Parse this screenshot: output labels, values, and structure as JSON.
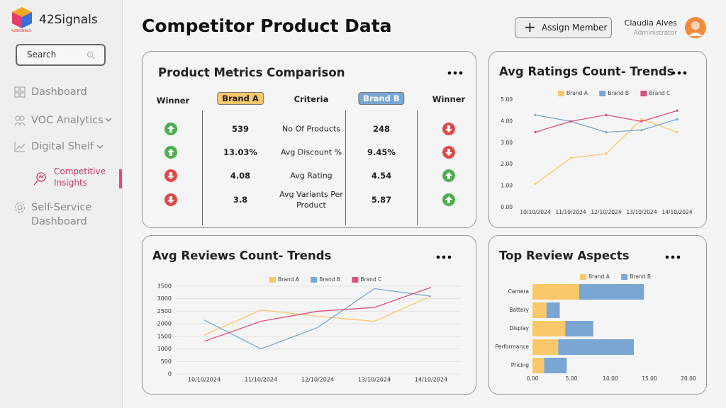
{
  "sidebar": {
    "logo": "42Signals",
    "logo_sub": "42SIGNALS",
    "search": "Search",
    "nav": [
      "Dashboard",
      "VOC Analytics",
      "Digital Shelf",
      "Competitive Insights",
      "Self-Service Dashboard"
    ]
  },
  "header": {
    "title": "Competitor Product Data",
    "button": "Assign Member",
    "user_name": "Claudia Alves",
    "user_role": "Administrator"
  },
  "metrics": {
    "title": "Product Metrics Comparison",
    "columns": [
      "Winner",
      "Brand A",
      "Criteria",
      "Brand B",
      "Winner"
    ],
    "rows": [
      [
        "539",
        "No Of Products",
        "248"
      ],
      [
        "13.03%",
        "Avg Discount %",
        "9.45%"
      ],
      [
        "4.08",
        "Avg Rating",
        "4.54"
      ],
      [
        "3.8",
        "Avg Variants Per Product",
        "5.87"
      ]
    ]
  },
  "chart_data": [
    {
      "type": "line",
      "title": "Avg Ratings Count- Trends",
      "markers": true,
      "grid": false,
      "categories": [
        "10/10/2024",
        "11/10/2024",
        "12/10/2024",
        "13/10/2024",
        "14/10/2024"
      ],
      "ylim": [
        0,
        5
      ],
      "yticks": [
        {
          "value": 0,
          "label": "0.00"
        },
        {
          "value": 1,
          "label": "1.00"
        },
        {
          "value": 2,
          "label": "2.00"
        },
        {
          "value": 3,
          "label": "3.00"
        },
        {
          "value": 4,
          "label": "4.00"
        },
        {
          "value": 5,
          "label": "5.00"
        }
      ],
      "series": [
        {
          "name": "Brand A",
          "color": "#f9c86a",
          "values": [
            1.1,
            2.3,
            2.5,
            4.1,
            3.5
          ]
        },
        {
          "name": "Brand B",
          "color": "#7aa6d4",
          "values": [
            4.3,
            4.0,
            3.5,
            3.6,
            4.1
          ]
        },
        {
          "name": "Brand C",
          "color": "#d9507a",
          "values": [
            3.5,
            4.0,
            4.3,
            4.0,
            4.5
          ]
        }
      ]
    },
    {
      "type": "line",
      "title": "Avg Reviews Count- Trends",
      "markers": false,
      "grid": true,
      "categories": [
        "10/10/2024",
        "11/10/2024",
        "12/10/2024",
        "13/10/2024",
        "14/10/2024"
      ],
      "ylim": [
        0,
        3500
      ],
      "yticks": [
        0,
        500,
        1000,
        1500,
        2000,
        2500,
        3000,
        3500
      ],
      "series": [
        {
          "name": "Brand A",
          "color": "#f9c86a",
          "values": [
            1550,
            2550,
            2300,
            2100,
            3100
          ]
        },
        {
          "name": "Brand B",
          "color": "#7aa6d4",
          "values": [
            2150,
            1000,
            1850,
            3400,
            3100
          ]
        },
        {
          "name": "Brand C",
          "color": "#d9507a",
          "values": [
            1300,
            2100,
            2500,
            2650,
            3450
          ]
        }
      ]
    },
    {
      "type": "hbar",
      "title": "Top Review Aspects",
      "stacked": true,
      "categories": [
        "Camera",
        "Battery",
        "Display",
        "Performance",
        "Pricing"
      ],
      "xlim": [
        0,
        20
      ],
      "xticks": [
        {
          "value": 0,
          "label": "0.00"
        },
        {
          "value": 5,
          "label": "5.00"
        },
        {
          "value": 10,
          "label": "10.00"
        },
        {
          "value": 15,
          "label": "15.00"
        },
        {
          "value": 20,
          "label": "20.00"
        }
      ],
      "series": [
        {
          "name": "Brand A",
          "color": "#f9c86a",
          "values": [
            6.0,
            1.8,
            4.2,
            3.3,
            1.5
          ]
        },
        {
          "name": "Brand B",
          "color": "#7aa6d4",
          "values": [
            8.3,
            1.7,
            3.6,
            9.7,
            2.9
          ]
        }
      ]
    }
  ]
}
